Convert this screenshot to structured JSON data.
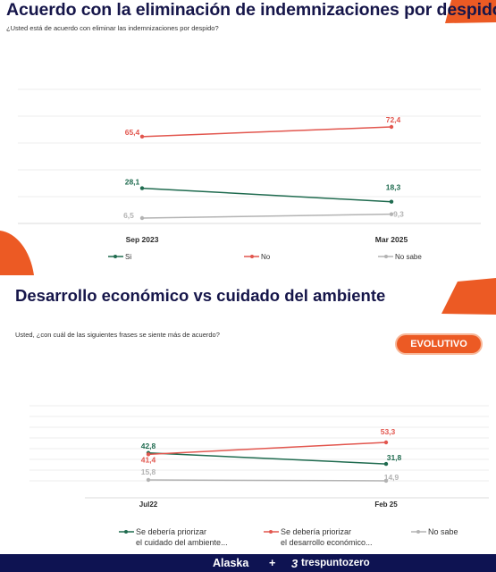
{
  "section1": {
    "title": "Acuerdo con la eliminación de indemnizaciones por despido",
    "question": "¿Usted está de acuerdo con eliminar las indemnizaciones por despido?"
  },
  "section2": {
    "title": "Desarrollo económico vs cuidado del ambiente",
    "question": "Usted, ¿con cuál de las siguientes frases se siente más de acuerdo?",
    "badge": "EVOLUTIVO"
  },
  "footer": {
    "brand1": "Alaska",
    "separator": "+",
    "brand2": "trespuntozero"
  },
  "colors": {
    "green": "#1f6b4f",
    "red": "#e2564e",
    "gray": "#b3b3b3",
    "orange": "#ec5a24",
    "navy": "#0e1352"
  },
  "chart_data": [
    {
      "type": "line",
      "categories": [
        "Sep 2023",
        "Mar 2025"
      ],
      "series": [
        {
          "name": "Si",
          "values": [
            28.1,
            18.3
          ],
          "labels": [
            "28,1",
            "18,3"
          ]
        },
        {
          "name": "No",
          "values": [
            65.4,
            72.4
          ],
          "labels": [
            "65,4",
            "72,4"
          ]
        },
        {
          "name": "No sabe",
          "values": [
            6.5,
            9.3
          ],
          "labels": [
            "6,5",
            "9,3"
          ]
        }
      ],
      "legend": "bottom",
      "grid": true
    },
    {
      "type": "line",
      "categories": [
        "Jul22",
        "Feb 25"
      ],
      "series": [
        {
          "name": [
            "Se debería priorizar",
            "el cuidado del ambiente..."
          ],
          "values": [
            42.8,
            31.8
          ],
          "labels": [
            "42,8",
            "31,8"
          ]
        },
        {
          "name": [
            "Se debería priorizar",
            "el desarrollo económico..."
          ],
          "values": [
            41.4,
            53.3
          ],
          "labels": [
            "41,4",
            "53,3"
          ]
        },
        {
          "name": [
            "No sabe"
          ],
          "values": [
            15.8,
            14.9
          ],
          "labels": [
            "15,8",
            "14,9"
          ]
        }
      ],
      "legend": "bottom",
      "grid": true
    }
  ]
}
